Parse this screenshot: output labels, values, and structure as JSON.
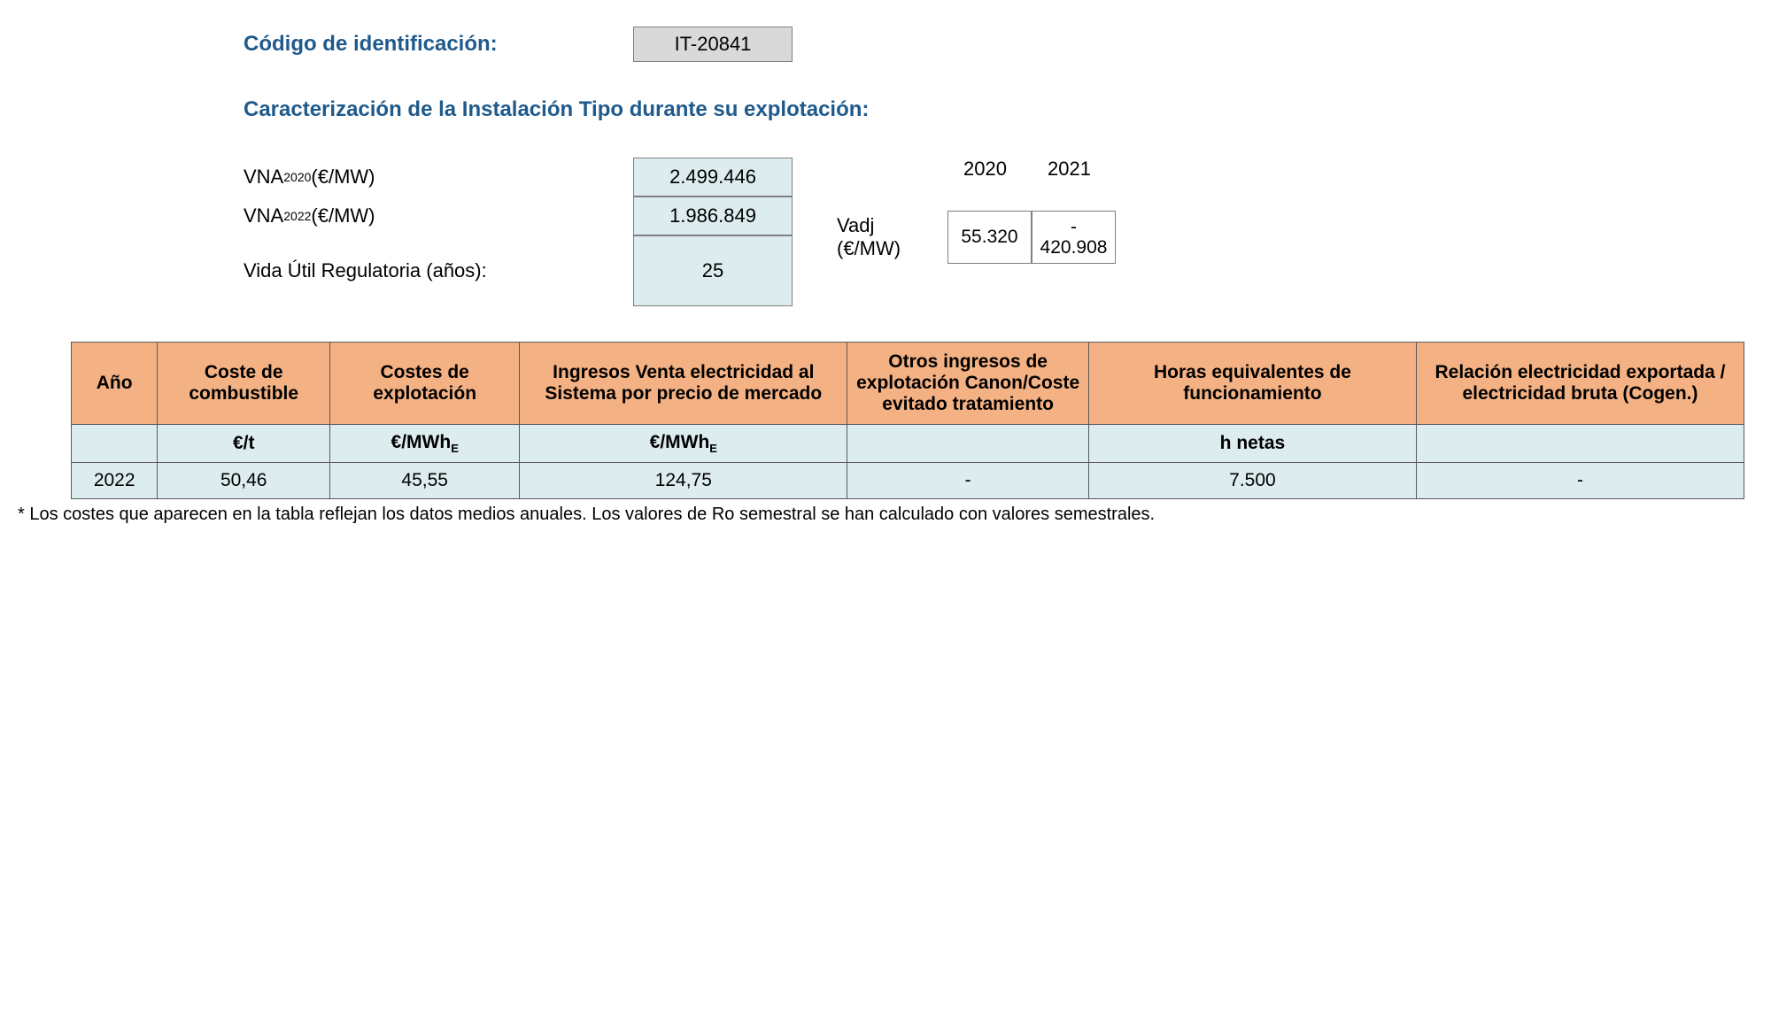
{
  "identification": {
    "label": "Código de identificación:",
    "value": "IT-20841"
  },
  "characterization": {
    "title": "Caracterización de la Instalación Tipo durante su explotación:",
    "params": [
      {
        "label_prefix": "VNA",
        "label_sub": "2020",
        "label_suffix": " (€/MW)",
        "value": "2.499.446",
        "tall": false
      },
      {
        "label_prefix": "VNA",
        "label_sub": "2022",
        "label_suffix": " (€/MW)",
        "value": "1.986.849",
        "tall": false
      },
      {
        "label_prefix": "Vida Útil Regulatoria (años):",
        "label_sub": "",
        "label_suffix": "",
        "value": "25",
        "tall": true
      }
    ],
    "vadj": {
      "label": "Vadj (€/MW)",
      "years": [
        "2020",
        "2021"
      ],
      "values": [
        {
          "text": "55.320",
          "negative": false
        },
        {
          "text": "420.908",
          "negative": true
        }
      ]
    }
  },
  "table": {
    "headers": [
      "Año",
      "Coste de combustible",
      "Costes de explotación",
      "Ingresos Venta electricidad al Sistema por precio de mercado",
      "Otros ingresos de explotación Canon/Coste evitado tratamiento",
      "Horas equivalentes de funcionamiento",
      "Relación electricidad exportada / electricidad bruta (Cogen.)"
    ],
    "units": [
      "",
      "€/t",
      "€/MWh",
      "€/MWh",
      "",
      "h netas",
      ""
    ],
    "units_has_sub_e": [
      false,
      false,
      true,
      true,
      false,
      false,
      false
    ],
    "rows": [
      {
        "cells": [
          "2022",
          "50,46",
          "45,55",
          "124,75",
          "-",
          "7.500",
          "-"
        ]
      }
    ],
    "header_bg": "#f4b183",
    "data_bg": "#dcecef",
    "border_color": "#5a5a5a"
  },
  "footnote": "* Los costes que aparecen en la tabla reflejan los datos medios anuales. Los valores de Ro semestral se han calculado con valores semestrales.",
  "colors": {
    "title_color": "#1f5a8c",
    "id_box_bg": "#d9d9d9",
    "param_box_bg": "#dcecef"
  }
}
